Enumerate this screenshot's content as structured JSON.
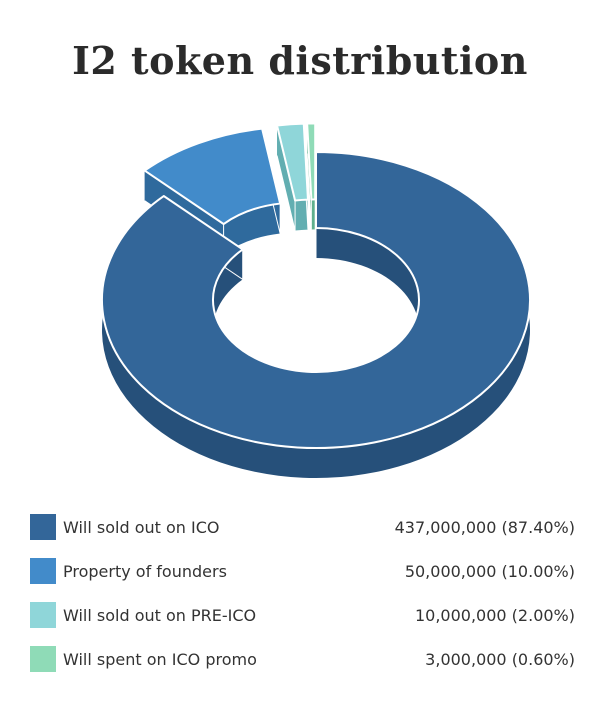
{
  "chart_data": {
    "type": "pie",
    "variant": "3d-donut",
    "title": "I2 token distribution",
    "series": [
      {
        "label": "Will sold out on ICO",
        "value": 437000000,
        "value_text": "437,000,000 (87.40%)",
        "percent": 87.4,
        "color": "#336699",
        "side_color": "#26507a",
        "exploded": false
      },
      {
        "label": "Property of founders",
        "value": 50000000,
        "value_text": "50,000,000 (10.00%)",
        "percent": 10.0,
        "color": "#428bca",
        "side_color": "#2f6a9d",
        "exploded": true
      },
      {
        "label": "Will sold out on PRE-ICO",
        "value": 10000000,
        "value_text": "10,000,000 (2.00%)",
        "percent": 2.0,
        "color": "#8fd6d9",
        "side_color": "#62aeb1",
        "exploded": true
      },
      {
        "label": "Will spent on ICO promo",
        "value": 3000000,
        "value_text": "3,000,000 (0.60%)",
        "percent": 0.6,
        "color": "#8fdbb7",
        "side_color": "#5fb08d",
        "exploded": true
      }
    ],
    "legend_position": "bottom"
  }
}
